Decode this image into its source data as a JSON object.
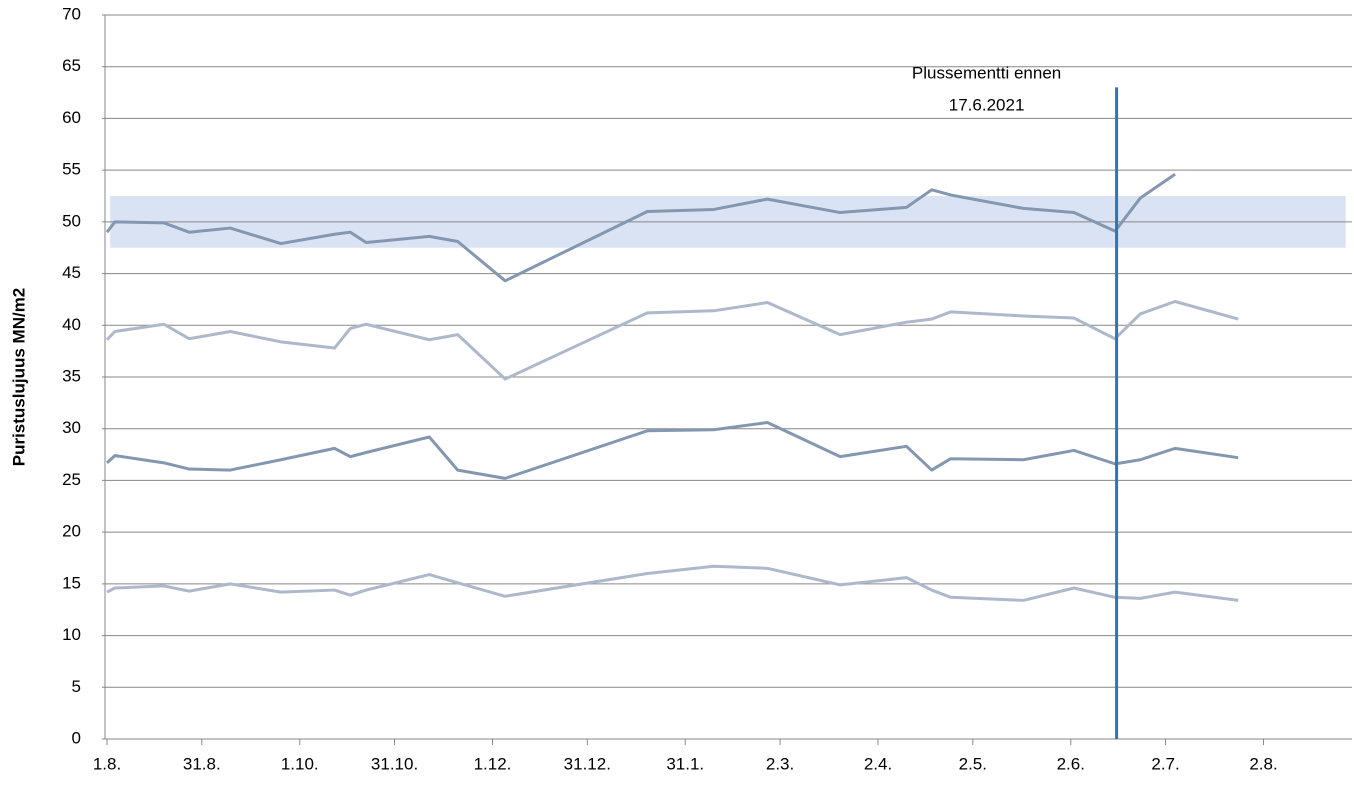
{
  "chart_data": {
    "type": "line",
    "y_label": "Puristuslujuus  MN/m2",
    "xlim": [
      0,
      394
    ],
    "ylim": [
      0,
      70
    ],
    "xticks": [
      {
        "value": 0,
        "label": "1.8."
      },
      {
        "value": 30,
        "label": "31.8."
      },
      {
        "value": 61,
        "label": "1.10."
      },
      {
        "value": 91,
        "label": "31.10."
      },
      {
        "value": 122,
        "label": "1.12."
      },
      {
        "value": 152,
        "label": "31.12."
      },
      {
        "value": 183,
        "label": "31.1."
      },
      {
        "value": 213,
        "label": "2.3."
      },
      {
        "value": 244,
        "label": "2.4."
      },
      {
        "value": 274,
        "label": "2.5."
      },
      {
        "value": 305,
        "label": "2.6."
      },
      {
        "value": 335,
        "label": "2.7."
      },
      {
        "value": 366,
        "label": "2.8."
      }
    ],
    "yticks": [
      0,
      5,
      10,
      15,
      20,
      25,
      30,
      35,
      40,
      45,
      50,
      55,
      60,
      65,
      70
    ],
    "grid": true,
    "band": {
      "x": [
        1,
        392
      ],
      "y": [
        47.5,
        52.5
      ],
      "color": "#dae3f3"
    },
    "marker": {
      "x": 319.5,
      "y": [
        0,
        63
      ],
      "color": "#2e75b6",
      "label": [
        "Plussementti ennen",
        "17.6.2021"
      ]
    },
    "series": [
      {
        "color": "#8497b0",
        "x": [
          0,
          2.5,
          18,
          26,
          39,
          55,
          72,
          77,
          82,
          102,
          111,
          126,
          171,
          192,
          209,
          232,
          253,
          261,
          267,
          290,
          306,
          319,
          327,
          338
        ],
        "values": [
          49.0,
          50.0,
          49.9,
          49.0,
          49.4,
          47.9,
          48.8,
          49.0,
          48.0,
          48.6,
          48.1,
          44.3,
          51.0,
          51.2,
          52.2,
          50.9,
          51.4,
          53.1,
          52.6,
          51.3,
          50.9,
          49.1,
          52.3,
          54.6
        ]
      },
      {
        "color": "#adb9ca",
        "x": [
          0,
          2.5,
          18,
          26,
          39,
          55,
          72,
          77,
          82,
          102,
          111,
          126,
          171,
          192,
          209,
          232,
          253,
          261,
          267,
          290,
          306,
          319,
          327,
          338,
          358
        ],
        "values": [
          38.6,
          39.4,
          40.1,
          38.7,
          39.4,
          38.4,
          37.8,
          39.7,
          40.1,
          38.6,
          39.1,
          34.8,
          41.2,
          41.4,
          42.2,
          39.1,
          40.3,
          40.6,
          41.3,
          40.9,
          40.7,
          38.7,
          41.1,
          42.3,
          40.6
        ]
      },
      {
        "color": "#8497b0",
        "x": [
          0,
          2.5,
          18,
          26,
          39,
          55,
          72,
          77,
          82,
          102,
          111,
          126,
          171,
          192,
          209,
          232,
          253,
          261,
          267,
          290,
          306,
          319,
          327,
          338,
          358
        ],
        "values": [
          26.7,
          27.4,
          26.7,
          26.1,
          26.0,
          27.0,
          28.1,
          27.3,
          27.7,
          29.2,
          26.0,
          25.2,
          29.8,
          29.9,
          30.6,
          27.3,
          28.3,
          26.0,
          27.1,
          27.0,
          27.9,
          26.6,
          27.0,
          28.1,
          27.2
        ]
      },
      {
        "color": "#adb9ca",
        "x": [
          0,
          2.5,
          18,
          26,
          39,
          55,
          72,
          77,
          82,
          102,
          111,
          126,
          171,
          192,
          209,
          232,
          253,
          261,
          267,
          290,
          306,
          319,
          327,
          338,
          358
        ],
        "values": [
          14.2,
          14.6,
          14.8,
          14.3,
          15.0,
          14.2,
          14.4,
          13.9,
          14.4,
          15.9,
          15.1,
          13.8,
          16.0,
          16.7,
          16.5,
          14.9,
          15.6,
          14.4,
          13.7,
          13.4,
          14.6,
          13.7,
          13.6,
          14.2,
          13.4
        ]
      }
    ]
  }
}
